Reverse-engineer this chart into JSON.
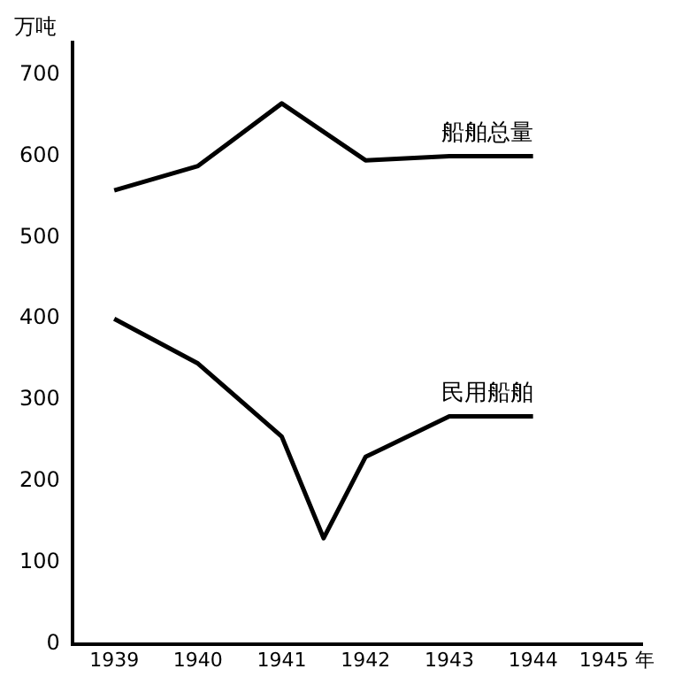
{
  "chart_data": {
    "type": "line",
    "ylabel": "万吨",
    "x": [
      1939,
      1940,
      1941,
      1942,
      1943,
      1944
    ],
    "series": [
      {
        "name": "船舶总量",
        "color": "#000000",
        "values": [
          558,
          588,
          665,
          595,
          600,
          600
        ]
      },
      {
        "name": "民用船舶",
        "color": "#000000",
        "x": [
          1939,
          1940,
          1941,
          1941.5,
          1942,
          1943,
          1944
        ],
        "values": [
          400,
          345,
          255,
          130,
          230,
          280,
          280
        ]
      }
    ],
    "xlim": [
      1938.5,
      1945.3
    ],
    "xticks": [
      1939,
      1940,
      1941,
      1942,
      1943,
      1944,
      {
        "value": 1945,
        "label": "1945 年"
      }
    ],
    "ylim": [
      0,
      740
    ],
    "yticks": [
      0,
      100,
      200,
      300,
      400,
      500,
      600,
      700
    ],
    "grid": false,
    "legend": false,
    "marker": "none",
    "line_style": "solid"
  }
}
